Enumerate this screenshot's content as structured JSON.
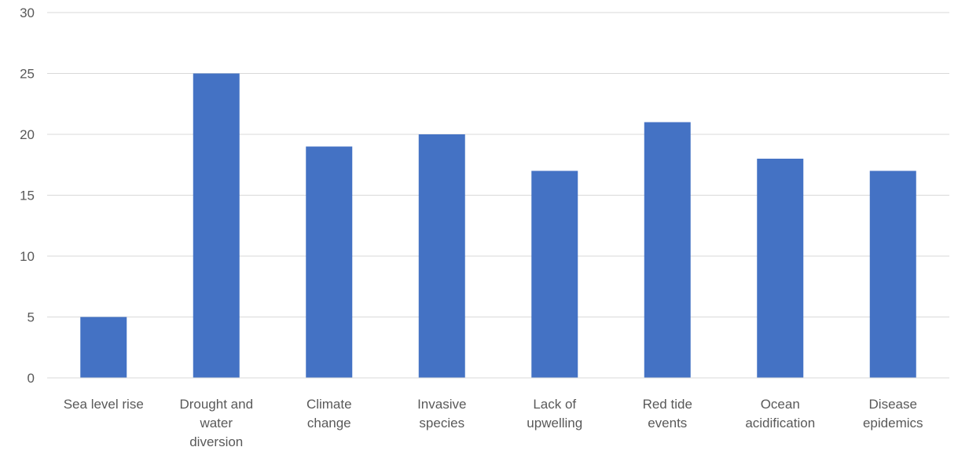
{
  "chart_data": {
    "type": "bar",
    "title": "",
    "xlabel": "",
    "ylabel": "",
    "categories": [
      [
        "Sea level rise"
      ],
      [
        "Drought and",
        "water",
        "diversion"
      ],
      [
        "Climate",
        "change"
      ],
      [
        "Invasive",
        "species"
      ],
      [
        "Lack of",
        "upwelling"
      ],
      [
        "Red tide",
        "events"
      ],
      [
        "Ocean",
        "acidification"
      ],
      [
        "Disease",
        "epidemics"
      ]
    ],
    "values": [
      5,
      25,
      19,
      20,
      17,
      21,
      18,
      17
    ],
    "ylim": [
      0,
      30
    ],
    "yticks": [
      "0",
      "5",
      "10",
      "15",
      "20",
      "25",
      "30"
    ],
    "grid": true,
    "legend": "none",
    "colors": {
      "bar": "#4472c4",
      "grid": "#d9d9d9",
      "text": "#595959"
    }
  }
}
